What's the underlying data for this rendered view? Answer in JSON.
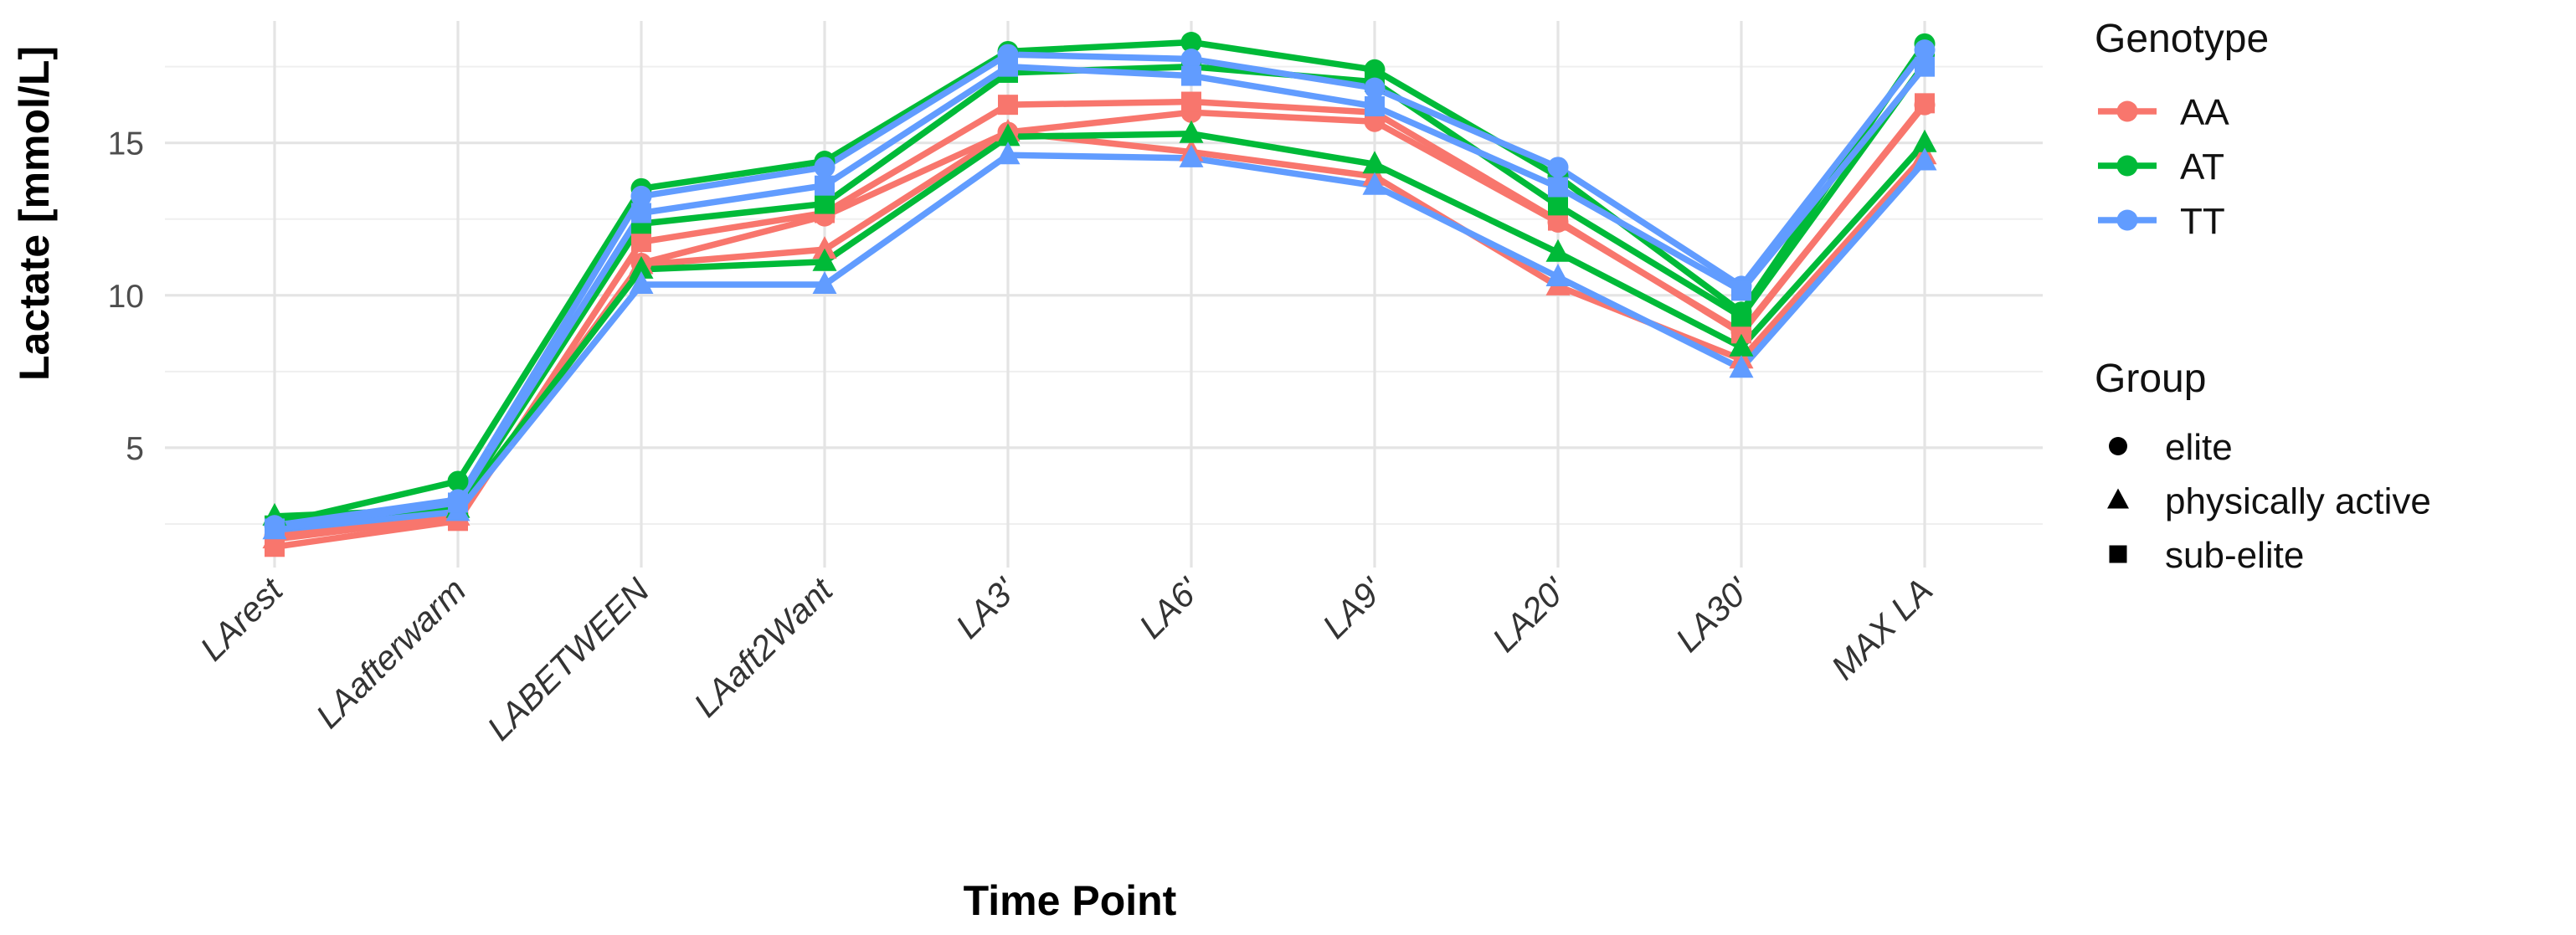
{
  "chart_data": {
    "type": "line",
    "title": "",
    "xlabel": "Time Point",
    "ylabel": "Lactate [mmol/L]",
    "categories": [
      "LArest",
      "LAafterwarm",
      "LABETWEEN",
      "LAaft2Want",
      "LA3'",
      "LA6'",
      "LA9'",
      "LA20'",
      "LA30'",
      "MAX LA"
    ],
    "y_ticks": [
      5,
      10,
      15
    ],
    "y_minor_ticks": [
      2.5,
      7.5,
      12.5,
      17.5
    ],
    "ylim": [
      1.0,
      18.95
    ],
    "grid": "on",
    "legend_position": "right",
    "legend": {
      "genotype": {
        "title": "Genotype",
        "entries": [
          {
            "label": "AA",
            "color": "#F8766D"
          },
          {
            "label": "AT",
            "color": "#00BA38"
          },
          {
            "label": "TT",
            "color": "#619CFF"
          }
        ]
      },
      "group": {
        "title": "Group",
        "entries": [
          {
            "label": "elite",
            "shape": "circle"
          },
          {
            "label": "physically active",
            "shape": "triangle"
          },
          {
            "label": "sub-elite",
            "shape": "square"
          }
        ]
      }
    },
    "series": [
      {
        "genotype": "AA",
        "group": "elite",
        "shape": "circle",
        "color": "#F8766D",
        "values": [
          2.1,
          2.85,
          11.05,
          12.6,
          15.35,
          16.0,
          15.7,
          12.4,
          8.8,
          16.25
        ]
      },
      {
        "genotype": "AA",
        "group": "physically active",
        "shape": "triangle",
        "color": "#F8766D",
        "values": [
          2.0,
          2.75,
          11.0,
          11.5,
          15.35,
          14.7,
          13.9,
          10.3,
          7.9,
          14.6
        ]
      },
      {
        "genotype": "AA",
        "group": "sub-elite",
        "shape": "square",
        "color": "#F8766D",
        "values": [
          1.75,
          2.6,
          11.75,
          12.7,
          16.25,
          16.35,
          16.0,
          12.45,
          8.75,
          16.3
        ]
      },
      {
        "genotype": "AT",
        "group": "elite",
        "shape": "circle",
        "color": "#00BA38",
        "values": [
          2.5,
          3.9,
          13.5,
          14.4,
          18.0,
          18.3,
          17.4,
          13.9,
          9.45,
          18.25
        ]
      },
      {
        "genotype": "AT",
        "group": "physically active",
        "shape": "triangle",
        "color": "#00BA38",
        "values": [
          2.75,
          3.0,
          10.85,
          11.1,
          15.2,
          15.3,
          14.3,
          11.4,
          8.3,
          15.0
        ]
      },
      {
        "genotype": "AT",
        "group": "sub-elite",
        "shape": "square",
        "color": "#00BA38",
        "values": [
          2.45,
          3.1,
          12.35,
          13.0,
          17.3,
          17.5,
          17.0,
          12.95,
          9.3,
          17.6
        ]
      },
      {
        "genotype": "TT",
        "group": "elite",
        "shape": "circle",
        "color": "#619CFF",
        "values": [
          2.45,
          3.3,
          13.25,
          14.2,
          17.9,
          17.75,
          16.8,
          14.2,
          10.3,
          18.05
        ]
      },
      {
        "genotype": "TT",
        "group": "physically active",
        "shape": "triangle",
        "color": "#619CFF",
        "values": [
          2.3,
          2.9,
          10.35,
          10.35,
          14.6,
          14.5,
          13.6,
          10.6,
          7.6,
          14.4
        ]
      },
      {
        "genotype": "TT",
        "group": "sub-elite",
        "shape": "square",
        "color": "#619CFF",
        "values": [
          2.35,
          3.2,
          12.7,
          13.6,
          17.5,
          17.2,
          16.2,
          13.55,
          10.15,
          17.5
        ]
      }
    ],
    "style": {
      "grid_major_color": "#E4E4E4",
      "grid_minor_color": "#EFEFEF",
      "background": "#FFFFFF",
      "group_legend_color": "#000000"
    }
  }
}
